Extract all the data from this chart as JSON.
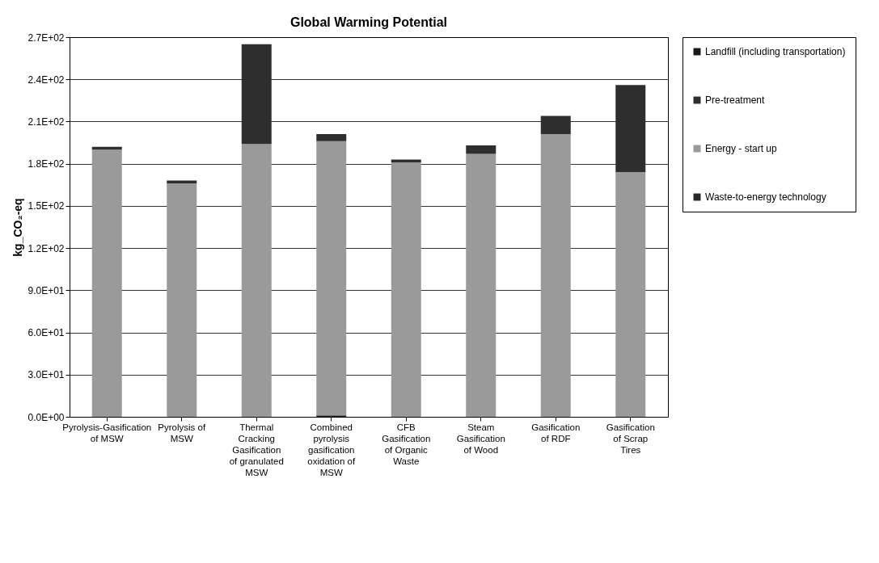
{
  "chart_data": {
    "type": "bar",
    "title": "Global Warming Potential",
    "ylabel": "kg_CO₂-eq",
    "stacked": true,
    "grid": "y",
    "legend": "right",
    "categories": [
      "Pyrolysis-Gasification of MSW",
      "Pyrolysis of MSW",
      "Thermal Cracking Gasification of granulated MSW",
      "Combined pyrolysis gasification oxidation of MSW",
      "CFB Gasification of Organic Waste",
      "Steam Gasification of Wood",
      "Gasification of RDF",
      "Gasification of Scrap Tires"
    ],
    "series": [
      {
        "name": "Waste-to-energy technology",
        "color": "#262626",
        "values": [
          0,
          0,
          0,
          1,
          0,
          0,
          0,
          0
        ]
      },
      {
        "name": "Energy - start up",
        "color": "#9a9a9a",
        "values": [
          190,
          166,
          194,
          195,
          181,
          187,
          201,
          174
        ]
      },
      {
        "name": "Pre-treatment",
        "color": "#2e2e2e",
        "values": [
          2,
          2,
          71,
          5,
          2,
          6,
          13,
          62
        ]
      },
      {
        "name": "Landfill (including transportation)",
        "color": "#1a1a1a",
        "values": [
          0,
          0,
          0,
          0,
          0,
          0,
          0,
          0
        ]
      }
    ],
    "ylim": [
      0,
      270
    ],
    "yticks": [
      {
        "value": 0,
        "label": "0.0E+00"
      },
      {
        "value": 30,
        "label": "3.0E+01"
      },
      {
        "value": 60,
        "label": "6.0E+01"
      },
      {
        "value": 90,
        "label": "9.0E+01"
      },
      {
        "value": 120,
        "label": "1.2E+02"
      },
      {
        "value": 150,
        "label": "1.5E+02"
      },
      {
        "value": 180,
        "label": "1.8E+02"
      },
      {
        "value": 210,
        "label": "2.1E+02"
      },
      {
        "value": 240,
        "label": "2.4E+02"
      },
      {
        "value": 270,
        "label": "2.7E+02"
      }
    ]
  }
}
